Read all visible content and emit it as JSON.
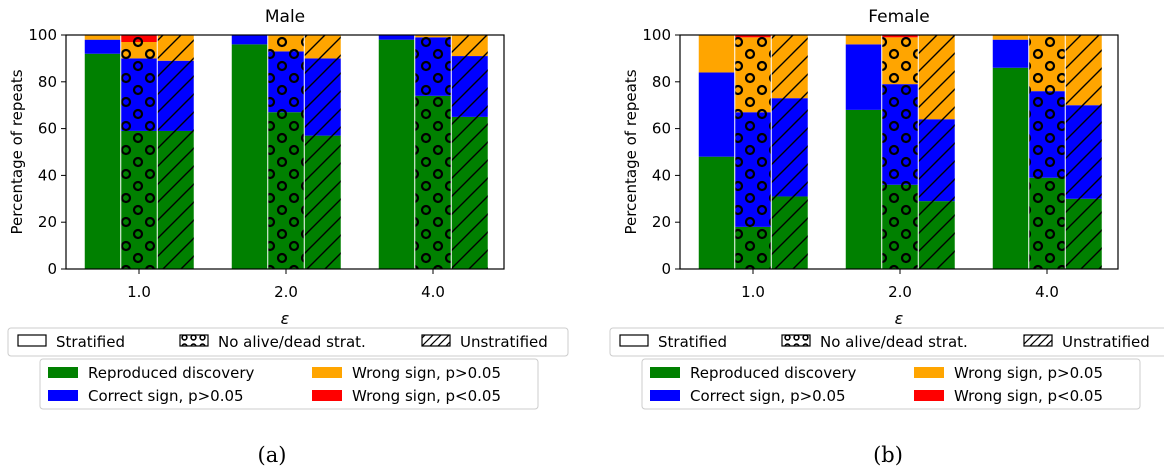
{
  "colors": {
    "reproduced": "#008000",
    "correct": "#0000ff",
    "wrong_ns": "#ffa500",
    "wrong_s": "#ff0000"
  },
  "hatch_legend": [
    "Stratified",
    "No alive/dead strat.",
    "Unstratified"
  ],
  "color_legend": [
    "Reproduced discovery",
    "Correct sign, p>0.05",
    "Wrong sign, p>0.05",
    "Wrong sign, p<0.05"
  ],
  "chart_data": [
    {
      "type": "bar",
      "stacked": true,
      "title": "Male",
      "caption": "(a)",
      "xlabel": "ε",
      "ylabel": "Percentage of repeats",
      "ylim": [
        0,
        100
      ],
      "yticks": [
        "0",
        "20",
        "40",
        "60",
        "80",
        "100"
      ],
      "categories": [
        "1.0",
        "2.0",
        "4.0"
      ],
      "groups": [
        "Stratified",
        "No alive/dead strat.",
        "Unstratified"
      ],
      "stack_order": [
        "Reproduced discovery",
        "Correct sign, p>0.05",
        "Wrong sign, p>0.05",
        "Wrong sign, p<0.05"
      ],
      "values": {
        "1.0": [
          [
            92,
            6,
            2,
            0
          ],
          [
            59,
            31,
            7,
            3
          ],
          [
            59,
            30,
            11,
            0
          ]
        ],
        "2.0": [
          [
            96,
            4,
            0,
            0
          ],
          [
            67,
            26,
            7,
            0
          ],
          [
            57,
            33,
            10,
            0
          ]
        ],
        "4.0": [
          [
            98,
            2,
            0,
            0
          ],
          [
            74,
            25,
            1,
            0
          ],
          [
            65,
            26,
            9,
            0
          ]
        ]
      }
    },
    {
      "type": "bar",
      "stacked": true,
      "title": "Female",
      "caption": "(b)",
      "xlabel": "ε",
      "ylabel": "Percentage of repeats",
      "ylim": [
        0,
        100
      ],
      "yticks": [
        "0",
        "20",
        "40",
        "60",
        "80",
        "100"
      ],
      "categories": [
        "1.0",
        "2.0",
        "4.0"
      ],
      "groups": [
        "Stratified",
        "No alive/dead strat.",
        "Unstratified"
      ],
      "stack_order": [
        "Reproduced discovery",
        "Correct sign, p>0.05",
        "Wrong sign, p>0.05",
        "Wrong sign, p<0.05"
      ],
      "values": {
        "1.0": [
          [
            48,
            36,
            16,
            0
          ],
          [
            18,
            49,
            32,
            1
          ],
          [
            31,
            42,
            27,
            0
          ]
        ],
        "2.0": [
          [
            68,
            28,
            4,
            0
          ],
          [
            36,
            43,
            20,
            1
          ],
          [
            29,
            35,
            36,
            0
          ]
        ],
        "4.0": [
          [
            86,
            12,
            2,
            0
          ],
          [
            39,
            37,
            24,
            0
          ],
          [
            30,
            40,
            30,
            0
          ]
        ]
      }
    }
  ]
}
